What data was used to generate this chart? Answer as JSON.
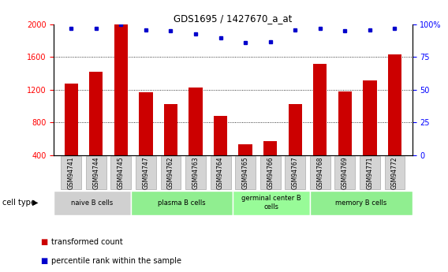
{
  "title": "GDS1695 / 1427670_a_at",
  "samples": [
    "GSM94741",
    "GSM94744",
    "GSM94745",
    "GSM94747",
    "GSM94762",
    "GSM94763",
    "GSM94764",
    "GSM94765",
    "GSM94766",
    "GSM94767",
    "GSM94768",
    "GSM94769",
    "GSM94771",
    "GSM94772"
  ],
  "bar_values": [
    1280,
    1420,
    2000,
    1170,
    1020,
    1230,
    880,
    530,
    570,
    1020,
    1520,
    1180,
    1310,
    1630
  ],
  "percentile_values": [
    97,
    97,
    100,
    96,
    95,
    93,
    90,
    86,
    87,
    96,
    97,
    95,
    96,
    97
  ],
  "bar_color": "#cc0000",
  "dot_color": "#0000cc",
  "ylim_left": [
    400,
    2000
  ],
  "ylim_right": [
    0,
    100
  ],
  "yticks_left": [
    400,
    800,
    1200,
    1600,
    2000
  ],
  "yticks_right": [
    0,
    25,
    50,
    75,
    100
  ],
  "ytick_right_labels": [
    "0",
    "25",
    "50",
    "75",
    "100%"
  ],
  "gridlines": [
    800,
    1200,
    1600
  ],
  "cell_groups": [
    {
      "label": "naive B cells",
      "count": 3,
      "color": "#d0d0d0"
    },
    {
      "label": "plasma B cells",
      "count": 4,
      "color": "#90ee90"
    },
    {
      "label": "germinal center B\ncells",
      "count": 3,
      "color": "#98fb98"
    },
    {
      "label": "memory B cells",
      "count": 4,
      "color": "#90ee90"
    }
  ],
  "legend_bar_label": "transformed count",
  "legend_dot_label": "percentile rank within the sample",
  "cell_type_label": "cell type",
  "sample_box_color": "#d4d4d4",
  "sample_box_edge_color": "#aaaaaa"
}
